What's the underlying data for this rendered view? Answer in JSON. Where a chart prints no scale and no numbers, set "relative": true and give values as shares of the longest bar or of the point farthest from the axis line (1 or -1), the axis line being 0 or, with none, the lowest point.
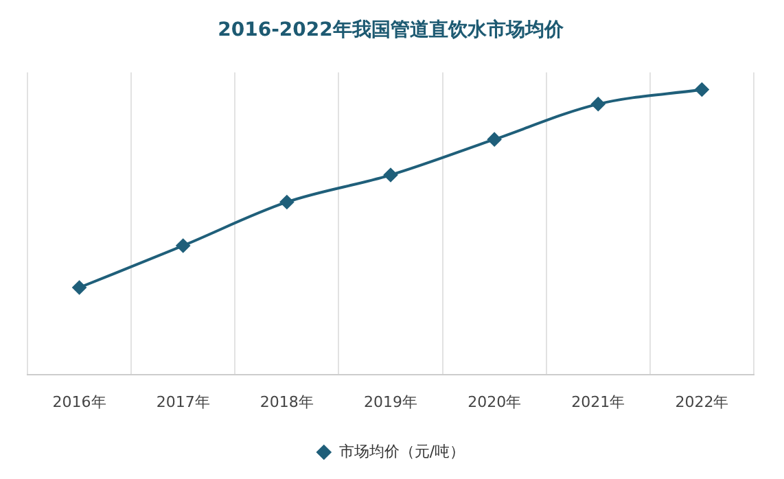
{
  "chart_data": {
    "type": "line",
    "title": "2016-2022年我国管道直饮水市场均价",
    "categories": [
      "2016年",
      "2017年",
      "2018年",
      "2019年",
      "2020年",
      "2021年",
      "2022年"
    ],
    "series": [
      {
        "name": "市场均价（元/吨）",
        "color": "#1f5f7a",
        "values": [
          0.305,
          0.452,
          0.605,
          0.7,
          0.825,
          0.949,
          1
        ]
      }
    ],
    "relative": true,
    "grid": "x",
    "legend": "bottom",
    "marker": "diamond"
  }
}
